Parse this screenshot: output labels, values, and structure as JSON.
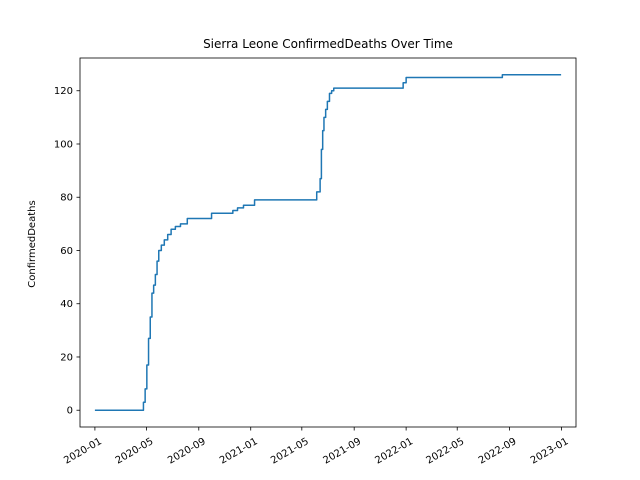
{
  "chart_data": {
    "type": "line",
    "title": "Sierra Leone  ConfirmedDeaths Over Time",
    "xlabel": "",
    "ylabel": "ConfirmedDeaths",
    "xlim": [
      "2019-11-27",
      "2023-02-04"
    ],
    "ylim": [
      -6.3,
      132.3
    ],
    "x_ticks": [
      "2020-01",
      "2020-05",
      "2020-09",
      "2021-01",
      "2021-05",
      "2021-09",
      "2022-01",
      "2022-05",
      "2022-09",
      "2023-01"
    ],
    "y_ticks": [
      0,
      20,
      40,
      60,
      80,
      100,
      120
    ],
    "grid": false,
    "color": "#1f77b4",
    "series": [
      {
        "x": [
          "2020-01-01",
          "2020-04-20",
          "2020-04-24",
          "2020-04-28",
          "2020-05-02",
          "2020-05-06",
          "2020-05-10",
          "2020-05-14",
          "2020-05-18",
          "2020-05-22",
          "2020-05-26",
          "2020-05-30",
          "2020-06-05",
          "2020-06-12",
          "2020-06-20",
          "2020-06-28",
          "2020-07-08",
          "2020-07-20",
          "2020-08-05",
          "2020-08-20",
          "2020-09-01",
          "2020-10-01",
          "2020-10-15",
          "2020-11-20",
          "2020-12-01",
          "2020-12-15",
          "2021-01-10",
          "2021-06-01",
          "2021-06-05",
          "2021-06-10",
          "2021-06-13",
          "2021-06-16",
          "2021-06-19",
          "2021-06-22",
          "2021-06-26",
          "2021-06-30",
          "2021-07-05",
          "2021-07-10",
          "2021-07-15",
          "2021-07-20",
          "2021-07-28",
          "2021-08-05",
          "2021-08-15",
          "2021-12-10",
          "2021-12-25",
          "2022-01-01",
          "2022-08-15",
          "2022-12-31"
        ],
        "y": [
          0,
          0,
          3,
          8,
          17,
          27,
          35,
          44,
          47,
          51,
          56,
          60,
          62,
          64,
          66,
          68,
          69,
          70,
          72,
          72,
          72,
          74,
          74,
          75,
          76,
          77,
          79,
          79,
          82,
          82,
          87,
          98,
          105,
          110,
          113,
          116,
          119,
          120,
          121,
          121,
          121,
          121,
          121,
          121,
          123,
          125,
          126,
          126
        ]
      }
    ]
  }
}
